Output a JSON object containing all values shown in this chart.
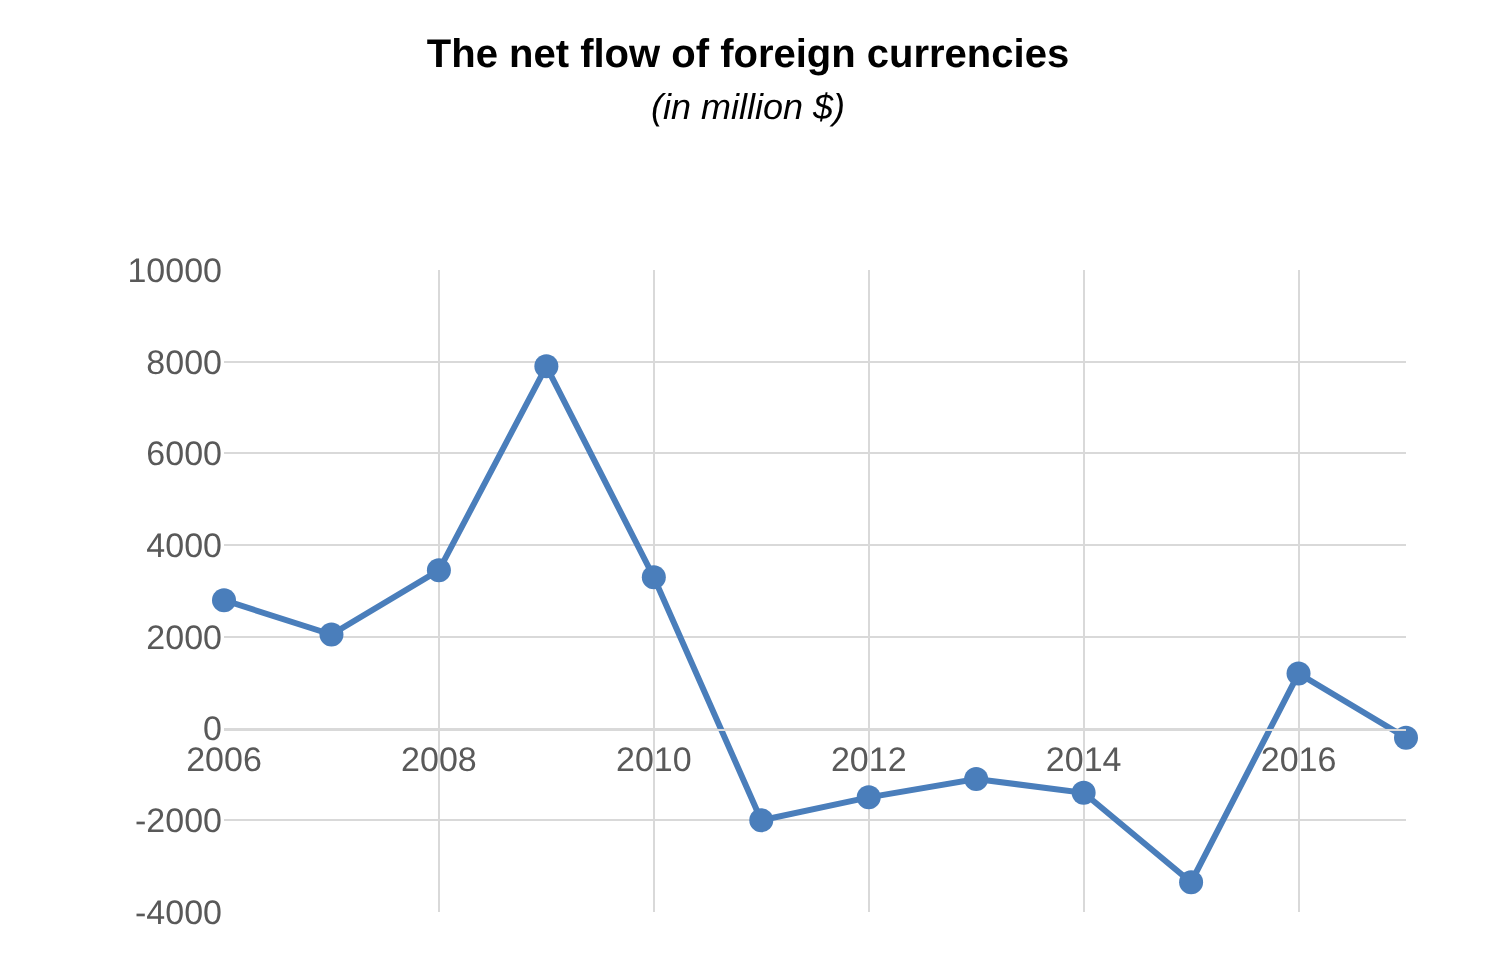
{
  "chart_data": {
    "type": "line",
    "title": "The net flow of foreign currencies",
    "subtitle": "(in million $)",
    "x": [
      2006,
      2007,
      2008,
      2009,
      2010,
      2011,
      2012,
      2013,
      2014,
      2015,
      2016,
      2017
    ],
    "series": [
      {
        "color": "#4a7ebb",
        "values": [
          2800,
          2050,
          3450,
          7900,
          3300,
          -2000,
          -1500,
          -1100,
          -1400,
          -3350,
          1200,
          -200
        ]
      }
    ],
    "xlim": [
      2006,
      2017
    ],
    "xticks": [
      2006,
      2008,
      2010,
      2012,
      2014,
      2016
    ],
    "ylim": [
      -4000,
      10000
    ],
    "yticks": [
      -4000,
      -2000,
      0,
      2000,
      4000,
      6000,
      8000,
      10000
    ],
    "grid": true,
    "marker": "circle",
    "line_style": "solid"
  }
}
